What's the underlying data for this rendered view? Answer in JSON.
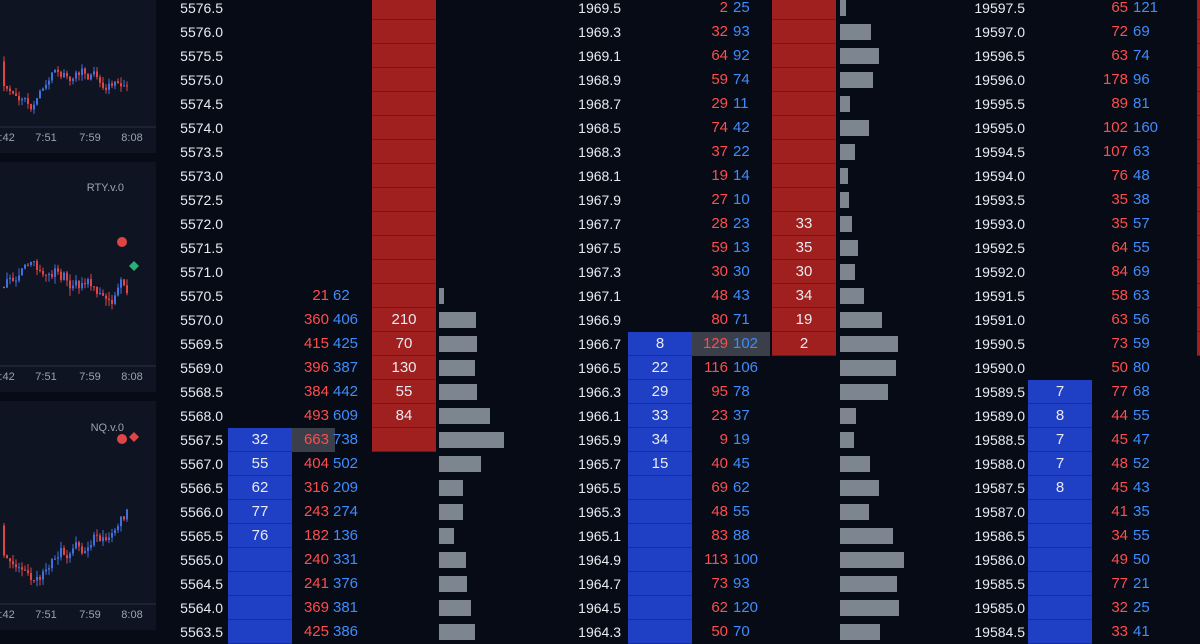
{
  "charts": [
    {
      "symbol": "",
      "times": [
        "7:42",
        "7:51",
        "7:59",
        "8:08"
      ],
      "trend": "up"
    },
    {
      "symbol": "RTY.v.0",
      "times": [
        "7:42",
        "7:51",
        "7:59",
        "8:08"
      ],
      "trend": "flat"
    },
    {
      "symbol": "NQ.v.0",
      "times": [
        "7:42",
        "7:51",
        "7:59",
        "8:08"
      ],
      "trend": "up"
    }
  ],
  "colors": {
    "ask": "#a01f1f",
    "bid": "#1f3fc4",
    "sell": "#ff4d4d",
    "buy": "#3f8cff",
    "volume": "#7d8591"
  },
  "ladders": [
    {
      "rows": [
        {
          "price": "5576.5",
          "ask": "",
          "bid": "",
          "sell": "",
          "buy": "",
          "vol": 0
        },
        {
          "price": "5576.0",
          "ask": "",
          "bid": "",
          "sell": "",
          "buy": "",
          "vol": 0
        },
        {
          "price": "5575.5",
          "ask": "",
          "bid": "",
          "sell": "",
          "buy": "",
          "vol": 0
        },
        {
          "price": "5575.0",
          "ask": "",
          "bid": "",
          "sell": "",
          "buy": "",
          "vol": 0
        },
        {
          "price": "5574.5",
          "ask": "",
          "bid": "",
          "sell": "",
          "buy": "",
          "vol": 0
        },
        {
          "price": "5574.0",
          "ask": "",
          "bid": "",
          "sell": "",
          "buy": "",
          "vol": 0
        },
        {
          "price": "5573.5",
          "ask": "",
          "bid": "",
          "sell": "",
          "buy": "",
          "vol": 0
        },
        {
          "price": "5573.0",
          "ask": "",
          "bid": "",
          "sell": "",
          "buy": "",
          "vol": 0
        },
        {
          "price": "5572.5",
          "ask": "",
          "bid": "",
          "sell": "",
          "buy": "",
          "vol": 0
        },
        {
          "price": "5572.0",
          "ask": "",
          "bid": "",
          "sell": "",
          "buy": "",
          "vol": 0
        },
        {
          "price": "5571.5",
          "ask": "",
          "bid": "",
          "sell": "",
          "buy": "",
          "vol": 0
        },
        {
          "price": "5571.0",
          "ask": "",
          "bid": "",
          "sell": "",
          "buy": "",
          "vol": 0
        },
        {
          "price": "5570.5",
          "ask": "",
          "bid": "",
          "sell": "21",
          "buy": "62",
          "vol": 5
        },
        {
          "price": "5570.0",
          "ask": "210",
          "bid": "",
          "sell": "360",
          "buy": "406",
          "vol": 37
        },
        {
          "price": "5569.5",
          "ask": "70",
          "bid": "",
          "sell": "415",
          "buy": "425",
          "vol": 38
        },
        {
          "price": "5569.0",
          "ask": "130",
          "bid": "",
          "sell": "396",
          "buy": "387",
          "vol": 36
        },
        {
          "price": "5568.5",
          "ask": "55",
          "bid": "",
          "sell": "384",
          "buy": "442",
          "vol": 38
        },
        {
          "price": "5568.0",
          "ask": "84",
          "bid": "",
          "sell": "493",
          "buy": "609",
          "vol": 51
        },
        {
          "price": "5567.5",
          "ask": "",
          "bid": "32",
          "sell": "663",
          "buy": "738",
          "vol": 65
        },
        {
          "price": "5567.0",
          "ask": "",
          "bid": "55",
          "sell": "404",
          "buy": "502",
          "vol": 42
        },
        {
          "price": "5566.5",
          "ask": "",
          "bid": "62",
          "sell": "316",
          "buy": "209",
          "vol": 24
        },
        {
          "price": "5566.0",
          "ask": "",
          "bid": "77",
          "sell": "243",
          "buy": "274",
          "vol": 24
        },
        {
          "price": "5565.5",
          "ask": "",
          "bid": "76",
          "sell": "182",
          "buy": "136",
          "vol": 15
        },
        {
          "price": "5565.0",
          "ask": "",
          "bid": "",
          "sell": "240",
          "buy": "331",
          "vol": 27
        },
        {
          "price": "5564.5",
          "ask": "",
          "bid": "",
          "sell": "241",
          "buy": "376",
          "vol": 28
        },
        {
          "price": "5564.0",
          "ask": "",
          "bid": "",
          "sell": "369",
          "buy": "381",
          "vol": 32
        },
        {
          "price": "5563.5",
          "ask": "",
          "bid": "",
          "sell": "425",
          "buy": "386",
          "vol": 36
        }
      ]
    },
    {
      "rows": [
        {
          "price": "1969.5",
          "ask": "",
          "bid": "",
          "sell": "2",
          "buy": "25",
          "vol": 6
        },
        {
          "price": "1969.3",
          "ask": "",
          "bid": "",
          "sell": "32",
          "buy": "93",
          "vol": 31
        },
        {
          "price": "1969.1",
          "ask": "",
          "bid": "",
          "sell": "64",
          "buy": "92",
          "vol": 39
        },
        {
          "price": "1968.9",
          "ask": "",
          "bid": "",
          "sell": "59",
          "buy": "74",
          "vol": 33
        },
        {
          "price": "1968.7",
          "ask": "",
          "bid": "",
          "sell": "29",
          "buy": "11",
          "vol": 10
        },
        {
          "price": "1968.5",
          "ask": "",
          "bid": "",
          "sell": "74",
          "buy": "42",
          "vol": 29
        },
        {
          "price": "1968.3",
          "ask": "",
          "bid": "",
          "sell": "37",
          "buy": "22",
          "vol": 15
        },
        {
          "price": "1968.1",
          "ask": "",
          "bid": "",
          "sell": "19",
          "buy": "14",
          "vol": 8
        },
        {
          "price": "1967.9",
          "ask": "",
          "bid": "",
          "sell": "27",
          "buy": "10",
          "vol": 9
        },
        {
          "price": "1967.7",
          "ask": "33",
          "bid": "",
          "sell": "28",
          "buy": "23",
          "vol": 12
        },
        {
          "price": "1967.5",
          "ask": "35",
          "bid": "",
          "sell": "59",
          "buy": "13",
          "vol": 18
        },
        {
          "price": "1967.3",
          "ask": "30",
          "bid": "",
          "sell": "30",
          "buy": "30",
          "vol": 15
        },
        {
          "price": "1967.1",
          "ask": "34",
          "bid": "",
          "sell": "48",
          "buy": "43",
          "vol": 24
        },
        {
          "price": "1966.9",
          "ask": "19",
          "bid": "",
          "sell": "80",
          "buy": "71",
          "vol": 42
        },
        {
          "price": "1966.7",
          "ask": "2",
          "bid": "8",
          "sell": "129",
          "buy": "102",
          "vol": 58
        },
        {
          "price": "1966.5",
          "ask": "",
          "bid": "22",
          "sell": "116",
          "buy": "106",
          "vol": 56
        },
        {
          "price": "1966.3",
          "ask": "",
          "bid": "29",
          "sell": "95",
          "buy": "78",
          "vol": 48
        },
        {
          "price": "1966.1",
          "ask": "",
          "bid": "33",
          "sell": "23",
          "buy": "37",
          "vol": 16
        },
        {
          "price": "1965.9",
          "ask": "",
          "bid": "34",
          "sell": "9",
          "buy": "19",
          "vol": 14
        },
        {
          "price": "1965.7",
          "ask": "",
          "bid": "15",
          "sell": "40",
          "buy": "45",
          "vol": 30
        },
        {
          "price": "1965.5",
          "ask": "",
          "bid": "",
          "sell": "69",
          "buy": "62",
          "vol": 39
        },
        {
          "price": "1965.3",
          "ask": "",
          "bid": "",
          "sell": "48",
          "buy": "55",
          "vol": 29
        },
        {
          "price": "1965.1",
          "ask": "",
          "bid": "",
          "sell": "83",
          "buy": "88",
          "vol": 53
        },
        {
          "price": "1964.9",
          "ask": "",
          "bid": "",
          "sell": "113",
          "buy": "100",
          "vol": 64
        },
        {
          "price": "1964.7",
          "ask": "",
          "bid": "",
          "sell": "73",
          "buy": "93",
          "vol": 57
        },
        {
          "price": "1964.5",
          "ask": "",
          "bid": "",
          "sell": "62",
          "buy": "120",
          "vol": 59
        },
        {
          "price": "1964.3",
          "ask": "",
          "bid": "",
          "sell": "50",
          "buy": "70",
          "vol": 40
        }
      ]
    },
    {
      "rows": [
        {
          "price": "19597.5",
          "ask": "",
          "bid": "",
          "sell": "65",
          "buy": "121",
          "vol": 0
        },
        {
          "price": "19597.0",
          "ask": "",
          "bid": "",
          "sell": "72",
          "buy": "69",
          "vol": 0
        },
        {
          "price": "19596.5",
          "ask": "",
          "bid": "",
          "sell": "63",
          "buy": "74",
          "vol": 0
        },
        {
          "price": "19596.0",
          "ask": "",
          "bid": "",
          "sell": "178",
          "buy": "96",
          "vol": 0
        },
        {
          "price": "19595.5",
          "ask": "",
          "bid": "",
          "sell": "89",
          "buy": "81",
          "vol": 0
        },
        {
          "price": "19595.0",
          "ask": "",
          "bid": "",
          "sell": "102",
          "buy": "160",
          "vol": 0
        },
        {
          "price": "19594.5",
          "ask": "",
          "bid": "",
          "sell": "107",
          "buy": "63",
          "vol": 0
        },
        {
          "price": "19594.0",
          "ask": "",
          "bid": "",
          "sell": "76",
          "buy": "48",
          "vol": 0
        },
        {
          "price": "19593.5",
          "ask": "",
          "bid": "",
          "sell": "35",
          "buy": "38",
          "vol": 0
        },
        {
          "price": "19593.0",
          "ask": "",
          "bid": "",
          "sell": "35",
          "buy": "57",
          "vol": 0
        },
        {
          "price": "19592.5",
          "ask": "",
          "bid": "",
          "sell": "64",
          "buy": "55",
          "vol": 0
        },
        {
          "price": "19592.0",
          "ask": "",
          "bid": "",
          "sell": "84",
          "buy": "69",
          "vol": 0
        },
        {
          "price": "19591.5",
          "ask": "",
          "bid": "",
          "sell": "58",
          "buy": "63",
          "vol": 0
        },
        {
          "price": "19591.0",
          "ask": "",
          "bid": "",
          "sell": "63",
          "buy": "56",
          "vol": 0
        },
        {
          "price": "19590.5",
          "ask": "",
          "bid": "",
          "sell": "73",
          "buy": "59",
          "vol": 0
        },
        {
          "price": "19590.0",
          "ask": "",
          "bid": "",
          "sell": "50",
          "buy": "80",
          "vol": 0
        },
        {
          "price": "19589.5",
          "ask": "",
          "bid": "7",
          "sell": "77",
          "buy": "68",
          "vol": 0
        },
        {
          "price": "19589.0",
          "ask": "",
          "bid": "8",
          "sell": "44",
          "buy": "55",
          "vol": 0
        },
        {
          "price": "19588.5",
          "ask": "",
          "bid": "7",
          "sell": "45",
          "buy": "47",
          "vol": 0
        },
        {
          "price": "19588.0",
          "ask": "",
          "bid": "7",
          "sell": "48",
          "buy": "52",
          "vol": 0
        },
        {
          "price": "19587.5",
          "ask": "",
          "bid": "8",
          "sell": "45",
          "buy": "43",
          "vol": 0
        },
        {
          "price": "19587.0",
          "ask": "",
          "bid": "",
          "sell": "41",
          "buy": "35",
          "vol": 0
        },
        {
          "price": "19586.5",
          "ask": "",
          "bid": "",
          "sell": "34",
          "buy": "55",
          "vol": 0
        },
        {
          "price": "19586.0",
          "ask": "",
          "bid": "",
          "sell": "49",
          "buy": "50",
          "vol": 0
        },
        {
          "price": "19585.5",
          "ask": "",
          "bid": "",
          "sell": "77",
          "buy": "21",
          "vol": 0
        },
        {
          "price": "19585.0",
          "ask": "",
          "bid": "",
          "sell": "32",
          "buy": "25",
          "vol": 0
        },
        {
          "price": "19584.5",
          "ask": "",
          "bid": "",
          "sell": "33",
          "buy": "41",
          "vol": 0
        }
      ]
    }
  ]
}
